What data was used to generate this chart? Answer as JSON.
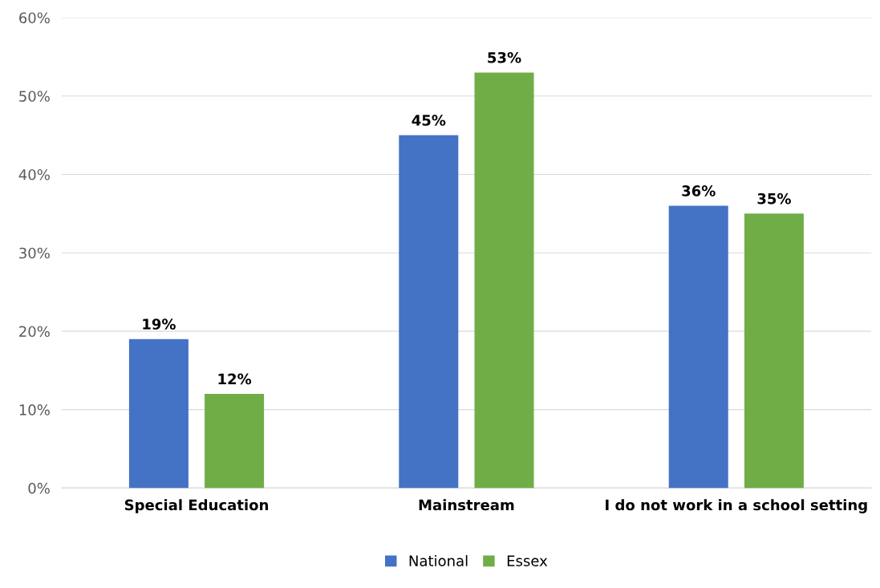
{
  "chart_data": {
    "type": "bar",
    "categories": [
      "Special Education",
      "Mainstream",
      "I do not work in a school setting"
    ],
    "series": [
      {
        "name": "National",
        "color": "#4472c4",
        "values": [
          19,
          45,
          36
        ],
        "value_labels": [
          "19%",
          "45%",
          "36%"
        ]
      },
      {
        "name": "Essex",
        "color": "#70ad47",
        "values": [
          12,
          53,
          35
        ],
        "value_labels": [
          "12%",
          "53%",
          "35%"
        ]
      }
    ],
    "ylim": [
      0,
      60
    ],
    "yticks": [
      {
        "value": 0,
        "label": "0%"
      },
      {
        "value": 10,
        "label": "10%"
      },
      {
        "value": 20,
        "label": "20%"
      },
      {
        "value": 30,
        "label": "30%"
      },
      {
        "value": 40,
        "label": "40%"
      },
      {
        "value": 50,
        "label": "50%"
      },
      {
        "value": 60,
        "label": "60%"
      }
    ],
    "grid": "y",
    "legend": "bottom"
  }
}
